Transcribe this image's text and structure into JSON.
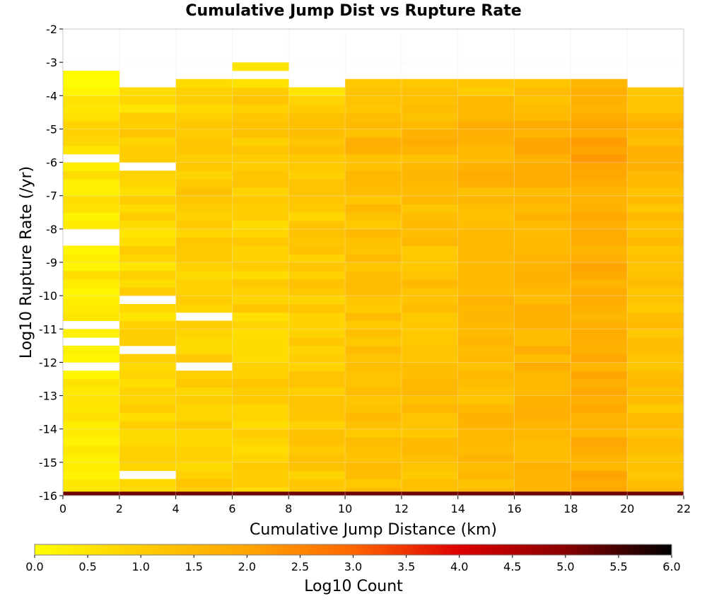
{
  "chart_data": {
    "type": "heatmap",
    "title": "Cumulative Jump Dist vs Rupture Rate",
    "xlabel": "Cumulative Jump Distance (km)",
    "ylabel": "Log10 Rupture Rate (/yr)",
    "colorbar_label": "Log10 Count",
    "xlim": [
      0,
      22
    ],
    "ylim": [
      -16,
      -2
    ],
    "x_ticks": [
      "0",
      "2",
      "4",
      "6",
      "8",
      "10",
      "12",
      "14",
      "16",
      "18",
      "20",
      "22"
    ],
    "y_ticks": [
      "-2",
      "-3",
      "-4",
      "-5",
      "-6",
      "-7",
      "-8",
      "-9",
      "-10",
      "-11",
      "-12",
      "-13",
      "-14",
      "-15",
      "-16"
    ],
    "colorbar_ticks": [
      "0.0",
      "0.5",
      "1.0",
      "1.5",
      "2.0",
      "2.5",
      "3.0",
      "3.5",
      "4.0",
      "4.5",
      "5.0",
      "5.5",
      "6.0"
    ],
    "color_range": [
      0,
      6
    ],
    "colormap": [
      "#ffff00",
      "#ffcc00",
      "#ffa500",
      "#ff6600",
      "#dd0000",
      "#880000",
      "#000000"
    ],
    "x_bin_width": 2,
    "y_bin_height": 0.25,
    "grid": true,
    "legend": "colorbar-bottom",
    "column_baselines": [
      0.4,
      0.75,
      0.95,
      0.9,
      1.05,
      1.25,
      1.3,
      1.45,
      1.55,
      1.75,
      1.3
    ],
    "column_top_rate": [
      -3.25,
      -3.75,
      -3.5,
      -3.0,
      -3.75,
      -3.5,
      -3.5,
      -3.5,
      -3.5,
      -3.5,
      -3.75
    ],
    "empty_bins": [
      {
        "x": 0,
        "y": -5.75
      },
      {
        "x": 0,
        "y": -8.0
      },
      {
        "x": 0,
        "y": -8.25
      },
      {
        "x": 0,
        "y": -10.75
      },
      {
        "x": 0,
        "y": -11.25
      },
      {
        "x": 0,
        "y": -12.0
      },
      {
        "x": 2,
        "y": -6.0
      },
      {
        "x": 2,
        "y": -10.0
      },
      {
        "x": 2,
        "y": -11.5
      },
      {
        "x": 2,
        "y": -15.25
      },
      {
        "x": 4,
        "y": -10.5
      },
      {
        "x": 4,
        "y": -12.0
      },
      {
        "x": 6,
        "y": -3.25
      }
    ],
    "bottom_row": {
      "y": -16.0,
      "value": 5.2
    }
  }
}
